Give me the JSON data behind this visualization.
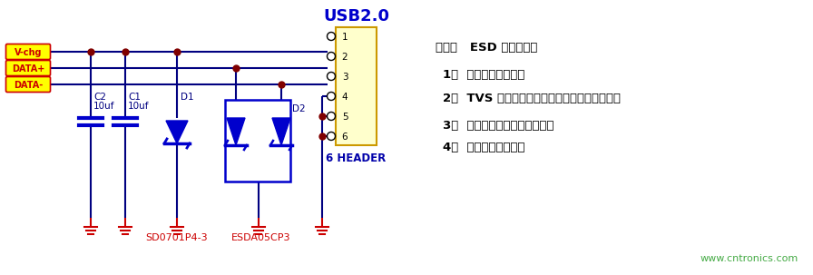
{
  "bg_color": "#ffffff",
  "title_usb": "USB2.0",
  "title_usb_color": "#0000cc",
  "connector_label": "6 HEADER",
  "connector_color": "#0000aa",
  "signal_labels": [
    "V-chg",
    "DATA+",
    "DATA-"
  ],
  "signal_text_color": "#cc0000",
  "signal_bg": "#ffff00",
  "signal_border": "#cc0000",
  "red_labels": [
    "SD0701P4-3",
    "ESDA05CP3"
  ],
  "red_label_color": "#cc0000",
  "watermark": "www.cntronics.com",
  "watermark_color": "#44aa44",
  "note_title": "备注：   ESD 选型原则：",
  "note_items": [
    "1、  选择合适的封装；",
    "2、  TVS 的击穿电压大于电路的最大工作电压；",
    "3、  选择符合测试要求的功率；",
    "4、  选择算位较小的。"
  ],
  "note_color": "#000000",
  "line_color": "#000080",
  "dot_color": "#800000",
  "gnd_color": "#cc0000",
  "cap_color": "#0000cc",
  "diode_color": "#0000cc",
  "connector_fill": "#ffffcc",
  "connector_border": "#cc9900"
}
